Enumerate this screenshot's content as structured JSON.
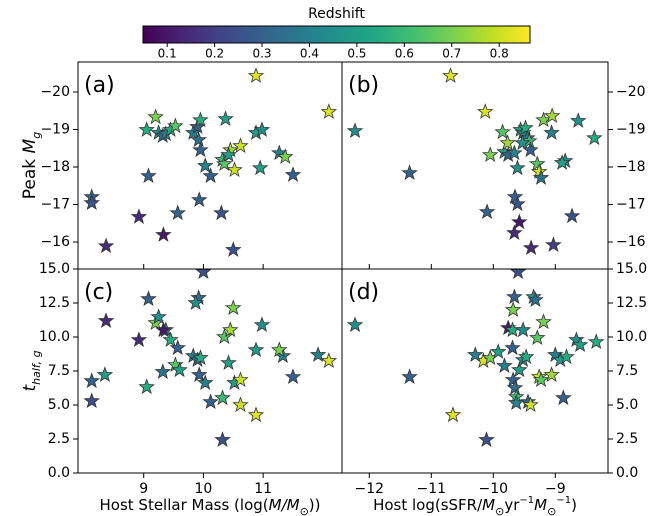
{
  "colorbar": {
    "label": "Redshift",
    "colormap": "viridis",
    "lim": [
      0.049,
      0.865
    ],
    "ticks": [
      0.1,
      0.2,
      0.3,
      0.4,
      0.5,
      0.6,
      0.7,
      0.8
    ]
  },
  "chart_data": [
    {
      "type": "scatter",
      "panel_label": "(a)",
      "ylabel": [
        {
          "text": "Peak ",
          "style": "normal"
        },
        {
          "text": "M",
          "style": "italic"
        },
        {
          "text": "g",
          "style": "sub"
        }
      ],
      "xlim": [
        7.9,
        12.32
      ],
      "ylim": [
        -15.28,
        -20.8
      ],
      "xticks": [
        9,
        10,
        11
      ],
      "show_xtick_labels": false,
      "yticks": [
        {
          "value": -20,
          "label": "−20"
        },
        {
          "value": -19,
          "label": "−19"
        },
        {
          "value": -18,
          "label": "−18"
        },
        {
          "value": -17,
          "label": "−17"
        },
        {
          "value": -16,
          "label": "−16"
        }
      ],
      "ytick_side": "left",
      "x": [
        8.13,
        8.13,
        8.37,
        8.92,
        9.08,
        9.05,
        9.2,
        9.25,
        9.32,
        9.37,
        9.45,
        9.53,
        9.33,
        9.57,
        9.83,
        9.9,
        9.95,
        9.92,
        9.95,
        9.93,
        10.12,
        10.03,
        10.37,
        10.32,
        10.35,
        10.45,
        10.42,
        10.52,
        10.62,
        10.5,
        10.3,
        10.88,
        10.88,
        10.98,
        10.95,
        11.27,
        11.37,
        11.5,
        12.1
      ],
      "values": [
        -17.2,
        -17.04,
        -15.89,
        -16.67,
        -17.76,
        -18.99,
        -19.33,
        -18.91,
        -18.83,
        -18.88,
        -18.99,
        -19.09,
        -16.19,
        -16.77,
        -18.91,
        -19.07,
        -19.25,
        -18.72,
        -18.45,
        -17.12,
        -17.76,
        -18.03,
        -19.28,
        -18.19,
        -18.08,
        -18.45,
        -18.32,
        -17.92,
        -18.56,
        -15.79,
        -16.77,
        -20.43,
        -18.91,
        -18.99,
        -17.97,
        -18.37,
        -18.27,
        -17.79,
        -19.47
      ],
      "redshift": [
        0.3,
        0.25,
        0.15,
        0.15,
        0.3,
        0.55,
        0.7,
        0.45,
        0.35,
        0.4,
        0.55,
        0.65,
        0.1,
        0.3,
        0.4,
        0.3,
        0.55,
        0.35,
        0.3,
        0.3,
        0.3,
        0.4,
        0.5,
        0.6,
        0.65,
        0.75,
        0.5,
        0.8,
        0.8,
        0.25,
        0.25,
        0.83,
        0.5,
        0.45,
        0.5,
        0.4,
        0.7,
        0.3,
        0.82
      ]
    },
    {
      "type": "scatter",
      "panel_label": "(b)",
      "xlim": [
        -12.44,
        -8.15
      ],
      "ylim": [
        -15.28,
        -20.8
      ],
      "xticks": [
        -12,
        -11,
        -10,
        -9
      ],
      "show_xtick_labels": false,
      "yticks": [
        {
          "value": -20,
          "label": "−20"
        },
        {
          "value": -19,
          "label": "−19"
        },
        {
          "value": -18,
          "label": "−18"
        },
        {
          "value": -17,
          "label": "−17"
        },
        {
          "value": -16,
          "label": "−16"
        }
      ],
      "ytick_side": "right",
      "x": [
        -12.23,
        -11.35,
        -10.69,
        -10.13,
        -10.05,
        -10.1,
        -9.85,
        -9.82,
        -9.76,
        -9.66,
        -9.61,
        -9.65,
        -9.61,
        -9.66,
        -9.58,
        -9.56,
        -9.52,
        -9.48,
        -9.45,
        -9.42,
        -9.53,
        -9.4,
        -9.39,
        -9.29,
        -9.26,
        -9.19,
        -9.23,
        -9.06,
        -9.03,
        -8.84,
        -8.89,
        -8.73,
        -8.63,
        -8.37,
        -9.05,
        -9.77
      ],
      "values": [
        -18.96,
        -17.84,
        -20.43,
        -19.47,
        -18.32,
        -16.8,
        -18.93,
        -18.4,
        -18.32,
        -18.37,
        -17.97,
        -17.2,
        -17.01,
        -16.24,
        -16.53,
        -18.99,
        -18.91,
        -19.04,
        -18.77,
        -18.69,
        -18.64,
        -18.45,
        -15.84,
        -18.08,
        -17.87,
        -19.25,
        -17.71,
        -18.91,
        -15.92,
        -18.16,
        -18.11,
        -16.69,
        -19.23,
        -18.77,
        -19.36,
        -18.64
      ],
      "redshift": [
        0.45,
        0.3,
        0.83,
        0.82,
        0.7,
        0.3,
        0.65,
        0.5,
        0.3,
        0.4,
        0.45,
        0.3,
        0.25,
        0.15,
        0.1,
        0.5,
        0.4,
        0.55,
        0.35,
        0.6,
        0.45,
        0.3,
        0.15,
        0.65,
        0.8,
        0.7,
        0.35,
        0.4,
        0.2,
        0.45,
        0.5,
        0.25,
        0.45,
        0.55,
        0.75,
        0.75
      ]
    },
    {
      "type": "scatter",
      "panel_label": "(c)",
      "ylabel": [
        {
          "text": "t",
          "style": "italic"
        },
        {
          "text": "half, g",
          "style": "sub"
        }
      ],
      "xlabel": [
        {
          "text": "Host Stellar Mass (log(",
          "style": "normal"
        },
        {
          "text": "M/M",
          "style": "italic"
        },
        {
          "text": "⊙",
          "style": "sub"
        },
        {
          "text": "))",
          "style": "normal"
        }
      ],
      "xlim": [
        7.9,
        12.32
      ],
      "ylim": [
        0,
        15
      ],
      "xticks": [
        9,
        10,
        11
      ],
      "show_xtick_labels": true,
      "yticks": [
        {
          "value": 0,
          "label": "0.0"
        },
        2.5,
        {
          "value": 5,
          "label": "5.0"
        },
        7.5,
        {
          "value": 10,
          "label": "10.0"
        },
        12.5,
        {
          "value": 15,
          "label": "15.0"
        }
      ],
      "ytick_side": "left",
      "x": [
        8.13,
        8.13,
        8.37,
        8.35,
        8.92,
        9.08,
        9.05,
        9.2,
        9.25,
        9.32,
        9.37,
        9.33,
        9.45,
        9.57,
        9.53,
        9.6,
        9.83,
        9.9,
        9.95,
        9.92,
        9.87,
        9.93,
        10.03,
        10.12,
        10.32,
        10.35,
        10.45,
        10.42,
        10.52,
        10.62,
        10.32,
        10.62,
        10.5,
        10.88,
        10.98,
        10.88,
        11.33,
        11.27,
        11.5,
        11.92,
        12.1,
        10.0
      ],
      "values": [
        6.76,
        5.29,
        11.18,
        7.21,
        9.78,
        12.79,
        6.32,
        11.03,
        11.47,
        7.43,
        10.51,
        10.51,
        9.78,
        9.19,
        7.94,
        7.57,
        8.6,
        8.31,
        8.46,
        12.87,
        12.5,
        7.21,
        6.62,
        5.22,
        2.43,
        10.0,
        10.51,
        8.09,
        6.62,
        6.84,
        5.51,
        5.0,
        12.13,
        4.26,
        10.88,
        9.04,
        8.6,
        9.04,
        7.06,
        8.68,
        8.24,
        14.78
      ],
      "redshift": [
        0.3,
        0.25,
        0.15,
        0.5,
        0.15,
        0.3,
        0.55,
        0.7,
        0.45,
        0.35,
        0.4,
        0.1,
        0.55,
        0.3,
        0.65,
        0.5,
        0.4,
        0.3,
        0.55,
        0.35,
        0.45,
        0.3,
        0.4,
        0.3,
        0.25,
        0.65,
        0.75,
        0.5,
        0.5,
        0.8,
        0.6,
        0.8,
        0.7,
        0.83,
        0.45,
        0.5,
        0.4,
        0.7,
        0.3,
        0.4,
        0.82,
        0.25
      ]
    },
    {
      "type": "scatter",
      "panel_label": "(d)",
      "xlabel": [
        {
          "text": "Host log(sSFR/",
          "style": "normal"
        },
        {
          "text": "M",
          "style": "italic"
        },
        {
          "text": "⊙",
          "style": "sub"
        },
        {
          "text": "yr",
          "style": "normal"
        },
        {
          "text": "−1",
          "style": "sup"
        },
        {
          "text": "M",
          "style": "italic"
        },
        {
          "text": "⊙",
          "style": "sub"
        },
        {
          "text": "−1",
          "style": "sup"
        },
        {
          "text": ")",
          "style": "normal"
        }
      ],
      "xlim": [
        -12.44,
        -8.15
      ],
      "ylim": [
        0,
        15
      ],
      "xticks": [
        {
          "value": -12,
          "label": "−12"
        },
        {
          "value": -11,
          "label": "−11"
        },
        {
          "value": -10,
          "label": "−10"
        },
        {
          "value": -9,
          "label": "−9"
        }
      ],
      "show_xtick_labels": true,
      "yticks": [
        {
          "value": 0,
          "label": "0.0"
        },
        2.5,
        {
          "value": 5,
          "label": "5.0"
        },
        7.5,
        {
          "value": 10,
          "label": "10.0"
        },
        12.5,
        {
          "value": 15,
          "label": "15.0"
        }
      ],
      "ytick_side": "right",
      "x": [
        -12.23,
        -11.35,
        -10.65,
        -10.11,
        -10.16,
        -10.05,
        -10.29,
        -9.92,
        -9.82,
        -9.76,
        -9.69,
        -9.68,
        -9.66,
        -9.6,
        -9.69,
        -9.68,
        -9.65,
        -9.63,
        -9.63,
        -9.58,
        -9.52,
        -9.52,
        -9.47,
        -9.44,
        -9.4,
        -9.35,
        -9.32,
        -9.29,
        -9.26,
        -9.23,
        -9.19,
        -9.06,
        -9.0,
        -8.92,
        -8.87,
        -8.66,
        -8.6,
        -8.34,
        -8.82
      ],
      "values": [
        10.88,
        7.06,
        4.26,
        2.43,
        8.24,
        8.46,
        8.68,
        8.9,
        7.87,
        10.66,
        10.51,
        11.99,
        12.94,
        14.78,
        9.19,
        6.84,
        6.25,
        5.59,
        5.15,
        7.57,
        8.31,
        10.51,
        8.53,
        5.22,
        5.0,
        12.94,
        12.72,
        9.93,
        7.06,
        6.84,
        11.1,
        7.21,
        8.68,
        8.31,
        5.51,
        9.78,
        9.41,
        9.63,
        8.53
      ],
      "redshift": [
        0.45,
        0.3,
        0.83,
        0.25,
        0.82,
        0.7,
        0.4,
        0.5,
        0.4,
        0.1,
        0.55,
        0.7,
        0.3,
        0.25,
        0.3,
        0.3,
        0.35,
        0.6,
        0.4,
        0.5,
        0.45,
        0.45,
        0.55,
        0.3,
        0.8,
        0.45,
        0.35,
        0.65,
        0.8,
        0.65,
        0.7,
        0.75,
        0.4,
        0.5,
        0.3,
        0.45,
        0.5,
        0.55,
        0.55
      ]
    }
  ]
}
